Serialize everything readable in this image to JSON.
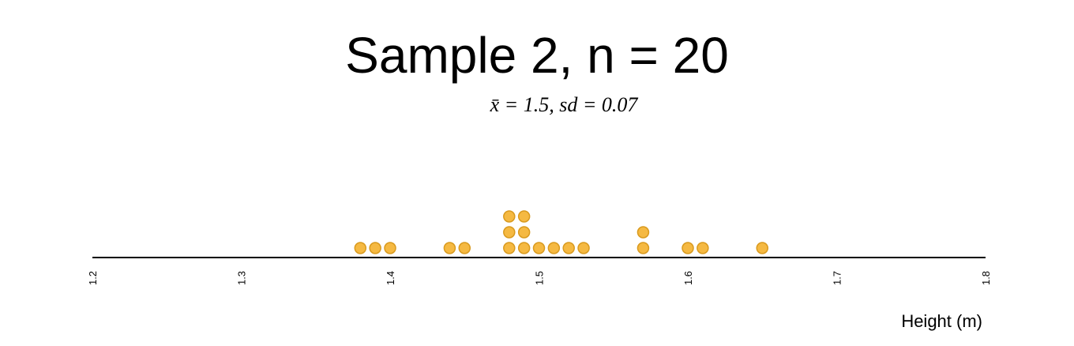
{
  "title": "Sample 2, n = 20",
  "subtitle": "x̄ = 1.5, sd = 0.07",
  "chart_data": {
    "type": "dot",
    "title": "Sample 2, n = 20",
    "subtitle": "x̄ = 1.5, sd = 0.07",
    "xlabel": "Height (m)",
    "xlim": [
      1.2,
      1.8
    ],
    "ticks": [
      "1.2",
      "1.3",
      "1.4",
      "1.5",
      "1.6",
      "1.7",
      "1.8"
    ],
    "values": [
      1.38,
      1.39,
      1.4,
      1.44,
      1.45,
      1.48,
      1.48,
      1.48,
      1.49,
      1.49,
      1.49,
      1.5,
      1.51,
      1.52,
      1.53,
      1.57,
      1.57,
      1.6,
      1.61,
      1.65
    ],
    "dot_color": "#F5B942",
    "dot_stroke": "#D99A1E",
    "grid": false
  }
}
